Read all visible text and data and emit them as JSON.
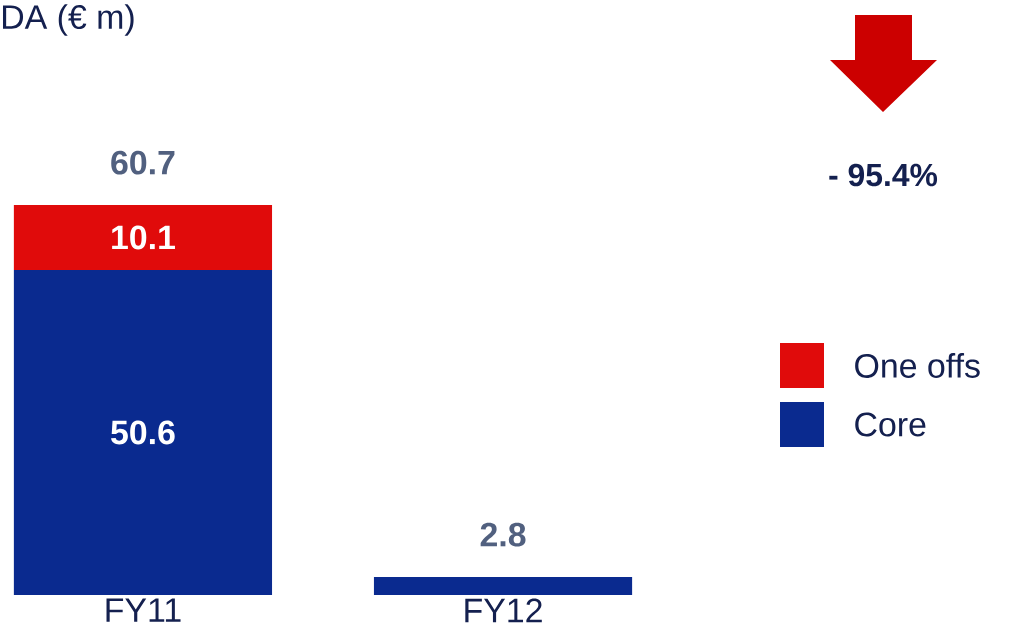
{
  "chart_data": {
    "type": "bar",
    "title": "DA (€ m)",
    "categories": [
      "FY11",
      "FY12"
    ],
    "stacked": true,
    "series": [
      {
        "name": "Core",
        "color": "#0a2a8f",
        "values": [
          50.6,
          2.8
        ],
        "value_labels": [
          "50.6",
          null
        ]
      },
      {
        "name": "One offs",
        "color": "#e00b0b",
        "values": [
          10.1,
          null
        ],
        "value_labels": [
          "10.1",
          null
        ]
      }
    ],
    "totals": [
      "60.7",
      "2.8"
    ],
    "legend": "right",
    "annotations": [
      "- 95.4%"
    ]
  }
}
